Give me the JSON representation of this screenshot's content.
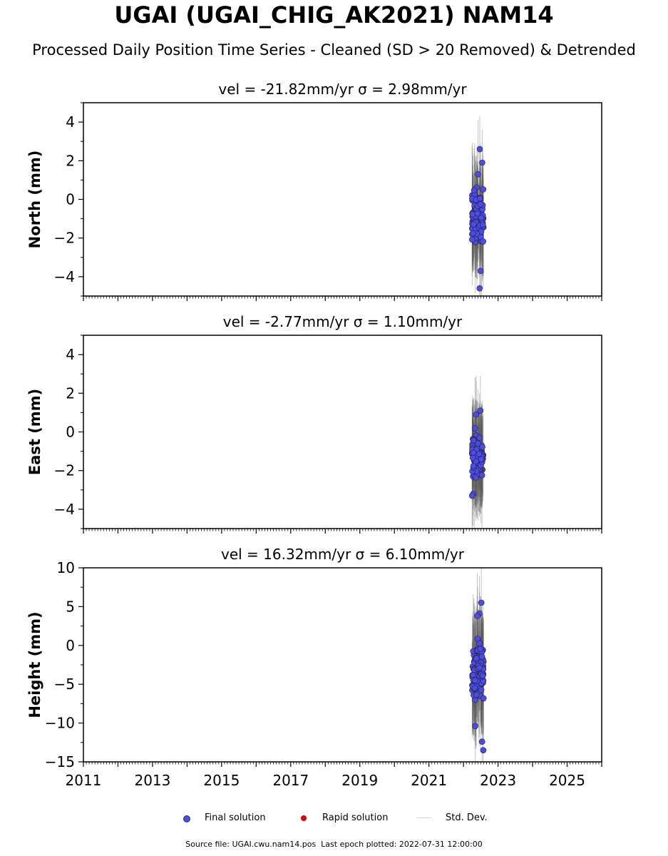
{
  "title": "UGAI (UGAI_CHIG_AK2021) NAM14",
  "subtitle": "Processed Daily Position Time Series - Cleaned (SD > 20 Removed) & Detrended",
  "legend": {
    "final": {
      "label": "Final solution",
      "color": "#4b4bf0"
    },
    "rapid": {
      "label": "Rapid solution",
      "color": "#e00000"
    },
    "std": {
      "label": "Std. Dev.",
      "color": "#d0d0d0"
    }
  },
  "footer": {
    "source": "Source file: UGAI.cwu.nam14.pos",
    "last_epoch": "Last epoch plotted: 2022-07-31 12:00:00"
  },
  "chart_data": [
    {
      "type": "scatter",
      "panel": "north",
      "title": "vel = -21.82mm/yr   σ = 2.98mm/yr",
      "ylabel": "North (mm)",
      "xlim": [
        2011,
        2026
      ],
      "ylim": [
        -5,
        5
      ],
      "yticks": [
        -4,
        -2,
        0,
        2,
        4
      ],
      "y_minor_step": 1,
      "x_data_start": 2022.25,
      "x_data_end": 2022.58,
      "y_mean": -1.0,
      "y_spread": 1.3,
      "y_outliers": [
        2.6,
        -4.6,
        -3.7,
        1.9,
        1.3
      ],
      "sigma": 2.3
    },
    {
      "type": "scatter",
      "panel": "east",
      "title": "vel = -2.77mm/yr   σ = 1.10mm/yr",
      "ylabel": "East (mm)",
      "xlim": [
        2011,
        2026
      ],
      "ylim": [
        -5,
        5
      ],
      "yticks": [
        -4,
        -2,
        0,
        2,
        4
      ],
      "y_minor_step": 1,
      "x_data_start": 2022.25,
      "x_data_end": 2022.58,
      "y_mean": -1.3,
      "y_spread": 0.9,
      "y_outliers": [
        1.1,
        0.9,
        -3.2,
        -3.3
      ],
      "sigma": 2.2
    },
    {
      "type": "scatter",
      "panel": "height",
      "title": "vel = 16.32mm/yr   σ = 6.10mm/yr",
      "ylabel": "Height (mm)",
      "xlim": [
        2011,
        2026
      ],
      "ylim": [
        -15,
        10
      ],
      "yticks": [
        -15,
        -10,
        -5,
        0,
        5,
        10
      ],
      "y_minor_step": 2.5,
      "x_data_start": 2022.25,
      "x_data_end": 2022.58,
      "y_mean": -3.5,
      "y_spread": 3.5,
      "y_outliers": [
        5.5,
        4.1,
        3.8,
        -13.5,
        -12.4,
        -10.4
      ],
      "sigma": 6
    }
  ],
  "xticks": [
    2011,
    2013,
    2015,
    2017,
    2019,
    2021,
    2023,
    2025
  ]
}
